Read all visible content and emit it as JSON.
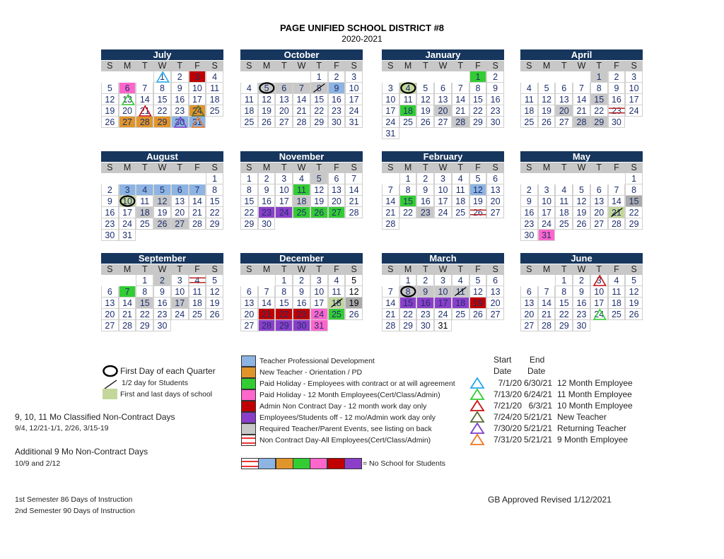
{
  "header": {
    "title": "PAGE UNIFIED SCHOOL DISTRICT #8",
    "subtitle": "2020-2021"
  },
  "weekdays": [
    "S",
    "M",
    "T",
    "W",
    "T",
    "F",
    "S"
  ],
  "colors": {
    "header": "#17365d",
    "blue": "#8db4e2",
    "orange": "#e0952a",
    "green": "#33cc33",
    "pink": "#ff66cc",
    "red": "#c00000",
    "purple": "#8b3fc9",
    "grey": "#c8c8c8",
    "darkgrey": "#aaaaaa",
    "lightgreen": "#c4d79b",
    "text": "#1f2f6e"
  },
  "months": [
    {
      "name": "July",
      "first": 3,
      "days": 31,
      "marks": {
        "1": {
          "tri": "#22aaee"
        },
        "3": {
          "fill": "red"
        },
        "6": {
          "fill": "pink"
        },
        "13": {
          "tri": "#33cc33"
        },
        "21": {
          "tri": "#cc1111"
        },
        "24": {
          "fill": "orange",
          "tri": "#556b2f"
        },
        "27": {
          "fill": "orange"
        },
        "28": {
          "fill": "orange"
        },
        "29": {
          "fill": "orange"
        },
        "30": {
          "fill": "blue",
          "tri": "#7b3fc9"
        },
        "31": {
          "fill": "blue",
          "tri": "#ee7722"
        }
      }
    },
    {
      "name": "October",
      "first": 4,
      "days": 31,
      "marks": {
        "5": {
          "fill": "grey",
          "circle": true
        },
        "6": {
          "fill": "grey"
        },
        "7": {
          "fill": "grey"
        },
        "8": {
          "fill": "grey",
          "slash": true
        },
        "9": {
          "fill": "blue"
        }
      }
    },
    {
      "name": "January",
      "first": 5,
      "days": 31,
      "marks": {
        "1": {
          "fill": "green"
        },
        "4": {
          "fill": "lightgreen",
          "circle": true
        },
        "18": {
          "fill": "green"
        },
        "20": {
          "fill": "grey"
        },
        "28": {
          "fill": "grey"
        }
      }
    },
    {
      "name": "April",
      "first": 4,
      "days": 30,
      "marks": {
        "1": {
          "fill": "grey"
        },
        "15": {
          "fill": "grey"
        },
        "20": {
          "fill": "grey"
        },
        "23": {
          "strike": true
        },
        "28": {
          "fill": "grey"
        },
        "29": {
          "fill": "grey"
        }
      }
    },
    {
      "name": "August",
      "first": 6,
      "days": 31,
      "marks": {
        "3": {
          "fill": "blue"
        },
        "4": {
          "fill": "blue"
        },
        "5": {
          "fill": "blue"
        },
        "6": {
          "fill": "blue"
        },
        "7": {
          "fill": "blue"
        },
        "10": {
          "fill": "lightgreen",
          "circle": true
        },
        "12": {
          "fill": "grey"
        },
        "18": {
          "fill": "grey"
        },
        "26": {
          "fill": "grey"
        },
        "27": {
          "fill": "grey"
        }
      }
    },
    {
      "name": "November",
      "first": 0,
      "days": 30,
      "marks": {
        "5": {
          "fill": "grey"
        },
        "11": {
          "fill": "green"
        },
        "18": {
          "fill": "grey"
        },
        "23": {
          "fill": "purple"
        },
        "24": {
          "fill": "purple"
        },
        "25": {
          "fill": "green"
        },
        "26": {
          "fill": "green"
        },
        "27": {
          "fill": "green"
        }
      }
    },
    {
      "name": "February",
      "first": 1,
      "days": 28,
      "marks": {
        "12": {
          "fill": "blue"
        },
        "15": {
          "fill": "green"
        },
        "23": {
          "fill": "grey"
        },
        "26": {
          "strike": true
        }
      }
    },
    {
      "name": "May",
      "first": 6,
      "days": 31,
      "marks": {
        "15": {
          "fill": "darkgrey"
        },
        "21": {
          "fill": "lightgreen",
          "slash": true
        },
        "31": {
          "fill": "pink"
        }
      }
    },
    {
      "name": "September",
      "first": 2,
      "days": 30,
      "marks": {
        "2": {
          "fill": "grey"
        },
        "4": {
          "strike": true
        },
        "7": {
          "fill": "green"
        },
        "15": {
          "fill": "grey"
        },
        "17": {
          "fill": "grey"
        }
      }
    },
    {
      "name": "December",
      "first": 2,
      "days": 31,
      "marks": {
        "5": {
          "black": true
        },
        "12": {
          "black": true
        },
        "18": {
          "fill": "lightgreen",
          "slash": true
        },
        "19": {
          "fill": "darkgrey",
          "black": true
        },
        "21": {
          "fill": "red"
        },
        "22": {
          "fill": "red"
        },
        "23": {
          "fill": "red"
        },
        "24": {
          "fill": "pink"
        },
        "25": {
          "fill": "green"
        },
        "28": {
          "fill": "purple"
        },
        "29": {
          "fill": "purple"
        },
        "30": {
          "fill": "purple"
        },
        "31": {
          "fill": "pink"
        }
      }
    },
    {
      "name": "March",
      "first": 1,
      "days": 31,
      "marks": {
        "8": {
          "fill": "grey",
          "circle": true
        },
        "9": {
          "fill": "grey"
        },
        "10": {
          "fill": "grey"
        },
        "11": {
          "fill": "grey",
          "slash": true
        },
        "15": {
          "fill": "purple"
        },
        "16": {
          "fill": "purple"
        },
        "17": {
          "fill": "purple"
        },
        "18": {
          "fill": "purple"
        },
        "19": {
          "fill": "red"
        },
        "31": {
          "black": true
        }
      }
    },
    {
      "name": "June",
      "first": 2,
      "days": 30,
      "marks": {
        "3": {
          "tri": "#cc1111"
        },
        "24": {
          "tri": "#33cc33"
        }
      }
    }
  ],
  "symbol_legend": {
    "circle": "First Day of each Quarter",
    "slash": "1/2 day for Students",
    "first_last": "First and last days of school"
  },
  "notes": {
    "classified_title": "9, 10, 11 Mo Classified Non-Contract Days",
    "classified_dates": "9/4, 12/21-1/1, 2/26, 3/15-19",
    "additional_title": "Additional 9 Mo Non-Contract Days",
    "additional_dates": "10/9 and 2/12",
    "sem1": "1st Semester 86 Days of Instruction",
    "sem2": "2nd Semester 90 Days of Instruction",
    "approved": "GB Approved Revised 1/12/2021"
  },
  "color_legend": [
    {
      "color": "blue",
      "label": "Teacher Professional Development"
    },
    {
      "color": "orange",
      "label": "New Teacher - Orientation / PD"
    },
    {
      "color": "green",
      "label": "Paid Holiday - Employees with contract or at will agreement"
    },
    {
      "color": "pink",
      "label": "Paid Holiday - 12 Month Employees(Cert/Class/Admin)"
    },
    {
      "color": "red",
      "label": "Admin Non Contract Day - 12 month work day only"
    },
    {
      "color": "purple",
      "label": "Employees/Students off - 12 mo/Admin work day only"
    },
    {
      "color": "grey",
      "label": "Required Teacher/Parent Events, see listing on back"
    },
    {
      "color": "strike",
      "label": "Non Contract Day-All Employees(Cert/Class/Admin)"
    }
  ],
  "no_school": {
    "colors": [
      "strike",
      "blue",
      "orange",
      "green",
      "pink",
      "red",
      "purple"
    ],
    "label": "= No School for Students"
  },
  "employee_table": {
    "start_header": "Start",
    "end_header": "End",
    "date_header": "Date",
    "rows": [
      {
        "tri": "#22aaee",
        "start": "7/1/20",
        "end": "6/30/21",
        "label": "12 Month Employee"
      },
      {
        "tri": "#33cc33",
        "start": "7/13/20",
        "end": "6/24/21",
        "label": "11 Month Employee"
      },
      {
        "tri": "#cc1111",
        "start": "7/21/20",
        "end": "6/3/21",
        "label": "10 Month Employee"
      },
      {
        "tri": "#556b2f",
        "start": "7/24/20",
        "end": "5/21/21",
        "label": "New Teacher"
      },
      {
        "tri": "#7b3fc9",
        "start": "7/30/20",
        "end": "5/21/21",
        "label": "Returning Teacher"
      },
      {
        "tri": "#ee7722",
        "start": "7/31/20",
        "end": "5/21/21",
        "label": "9 Month Employee"
      }
    ]
  }
}
